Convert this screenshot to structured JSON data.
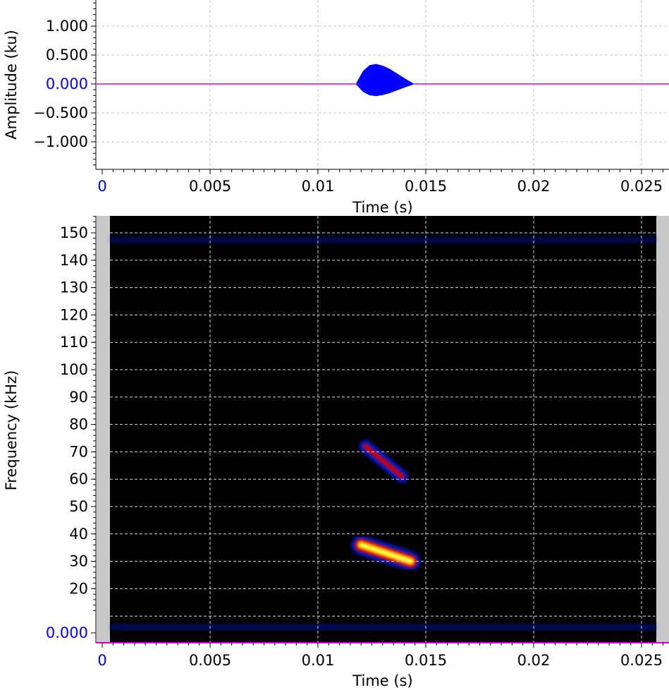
{
  "chart_data": [
    {
      "type": "line",
      "kind": "waveform",
      "xlabel": "Time (s)",
      "ylabel": "Amplitude (ku)",
      "xlim": [
        0,
        0.0262
      ],
      "ylim": [
        -1.45,
        1.45
      ],
      "x_ticks": [
        0,
        0.005,
        0.01,
        0.015,
        0.02,
        0.025
      ],
      "x_tick_labels": [
        "0",
        "0.005",
        "0.01",
        "0.015",
        "0.02",
        "0.025"
      ],
      "y_ticks": [
        1.0,
        0.5,
        0.0,
        -0.5,
        -1.0
      ],
      "y_tick_labels": [
        "1.000",
        "0.500",
        "0.000",
        "−0.500",
        "−1.000"
      ],
      "grid": true,
      "series": [
        {
          "color": "#0000ff",
          "envelope": {
            "t": [
              0.0118,
              0.0121,
              0.0124,
              0.0127,
              0.013,
              0.0133,
              0.0136,
              0.0139,
              0.0142,
              0.0144
            ],
            "amp": [
              0.02,
              0.22,
              0.32,
              0.34,
              0.31,
              0.26,
              0.19,
              0.12,
              0.05,
              0.01
            ]
          },
          "baseline_color": "#cc00cc"
        }
      ]
    },
    {
      "type": "heatmap",
      "kind": "spectrogram",
      "xlabel": "Time (s)",
      "ylabel": "Frequency (kHz)",
      "xlim": [
        0,
        0.0262
      ],
      "ylim": [
        0,
        157
      ],
      "x_ticks": [
        0,
        0.005,
        0.01,
        0.015,
        0.02,
        0.025
      ],
      "x_tick_labels": [
        "0",
        "0.005",
        "0.01",
        "0.015",
        "0.02",
        "0.025"
      ],
      "y_ticks": [
        150,
        140,
        130,
        120,
        110,
        100,
        90,
        80,
        70,
        60,
        50,
        40,
        30,
        20,
        0
      ],
      "y_tick_labels": [
        "150",
        "140",
        "130",
        "120",
        "110",
        "100",
        "90",
        "80",
        "70",
        "60",
        "50",
        "40",
        "30",
        "20",
        "0.000"
      ],
      "grid": true,
      "colormap": [
        "#000000",
        "#0022ff",
        "#cc0000",
        "#ff8800",
        "#ffff44"
      ],
      "components": [
        {
          "name": "fundamental",
          "t_start": 0.012,
          "f_start": 36,
          "t_end": 0.0143,
          "f_end": 30,
          "intensity": 1.0
        },
        {
          "name": "harmonic",
          "t_start": 0.0122,
          "f_start": 72,
          "t_end": 0.0139,
          "f_end": 61,
          "intensity": 0.55
        }
      ],
      "noise_bands": [
        {
          "f": 147.5,
          "intensity": 0.35
        },
        {
          "f": 6,
          "intensity": 0.4
        }
      ]
    }
  ]
}
